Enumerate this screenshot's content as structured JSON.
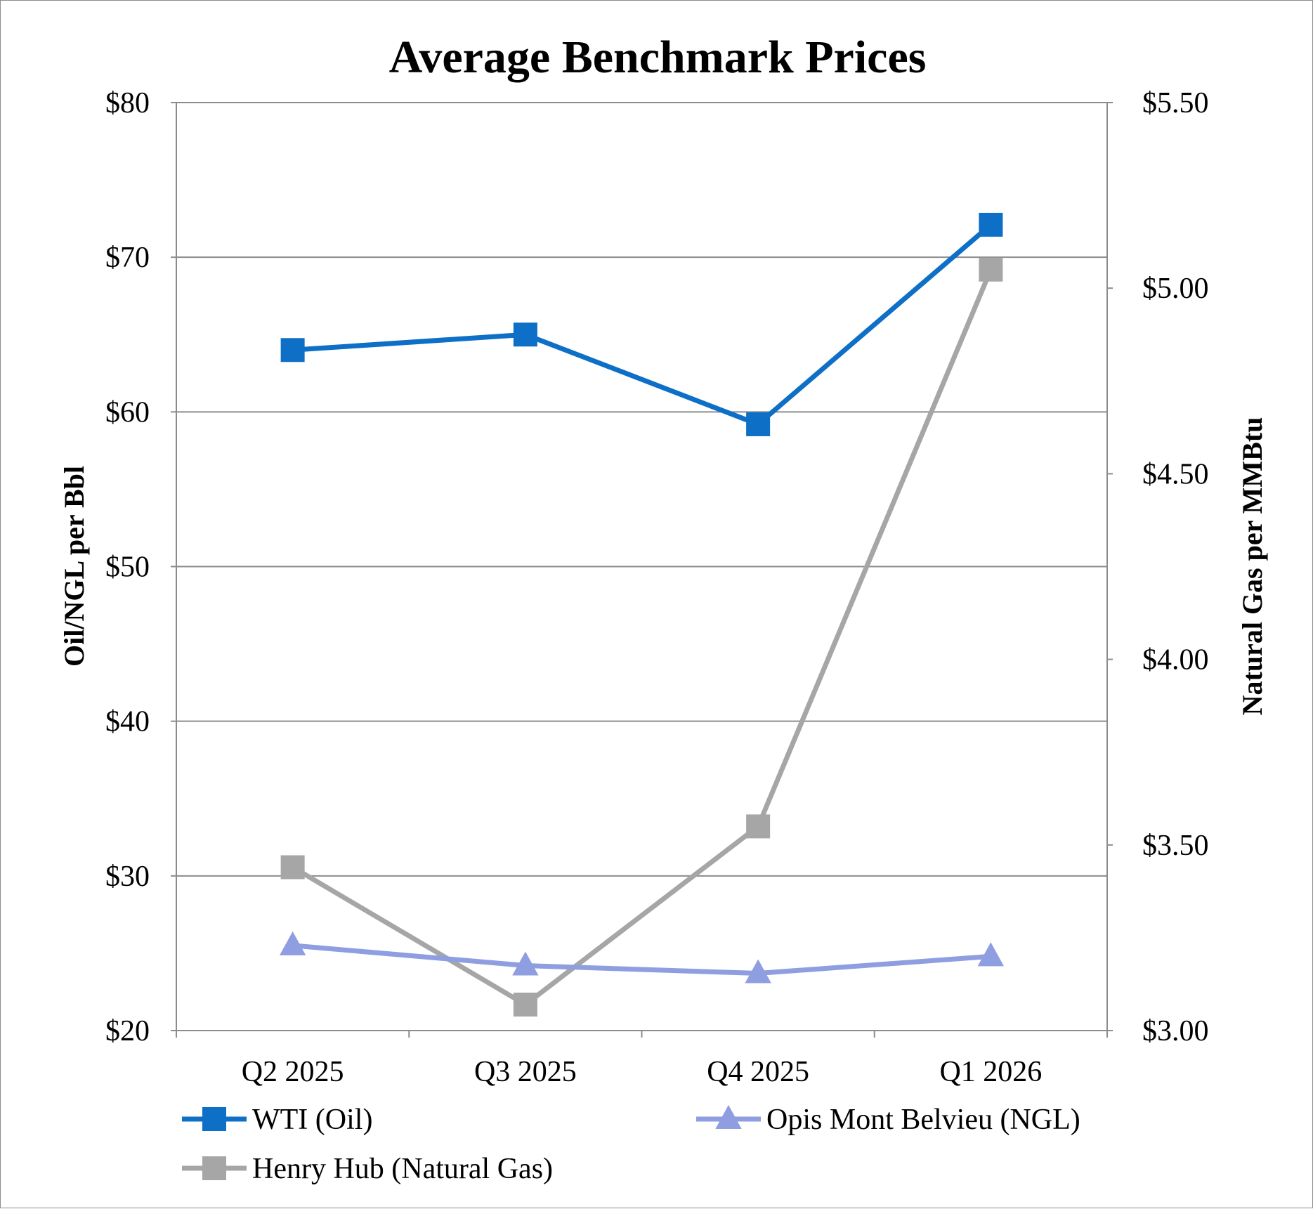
{
  "chart_data": {
    "type": "line",
    "title": "Average Benchmark Prices",
    "categories": [
      "Q2 2025",
      "Q3 2025",
      "Q4 2025",
      "Q1 2026"
    ],
    "ylabel_left": "Oil/NGL per Bbl",
    "ylabel_right": "Natural Gas per MMBtu",
    "ylim_left": [
      20,
      80
    ],
    "ylim_right": [
      3.0,
      5.5
    ],
    "yticks_left": [
      "$20",
      "$30",
      "$40",
      "$50",
      "$60",
      "$70",
      "$80"
    ],
    "yticks_right": [
      "$3.00",
      "$3.50",
      "$4.00",
      "$4.50",
      "$5.00",
      "$5.50"
    ],
    "grid": true,
    "legend_position": "bottom",
    "series": [
      {
        "name": "WTI (Oil)",
        "axis": "left",
        "marker": "square",
        "color": "#0d6fc6",
        "values": [
          64.0,
          65.0,
          59.2,
          72.1
        ]
      },
      {
        "name": "Henry Hub (Natural Gas)",
        "axis": "right",
        "marker": "square",
        "color": "#a6a6a6",
        "values": [
          3.44,
          3.07,
          3.55,
          5.05
        ]
      },
      {
        "name": "Opis Mont Belvieu (NGL)",
        "axis": "left",
        "marker": "triangle",
        "color": "#8f9ee0",
        "values": [
          25.5,
          24.2,
          23.7,
          24.8
        ]
      }
    ]
  }
}
